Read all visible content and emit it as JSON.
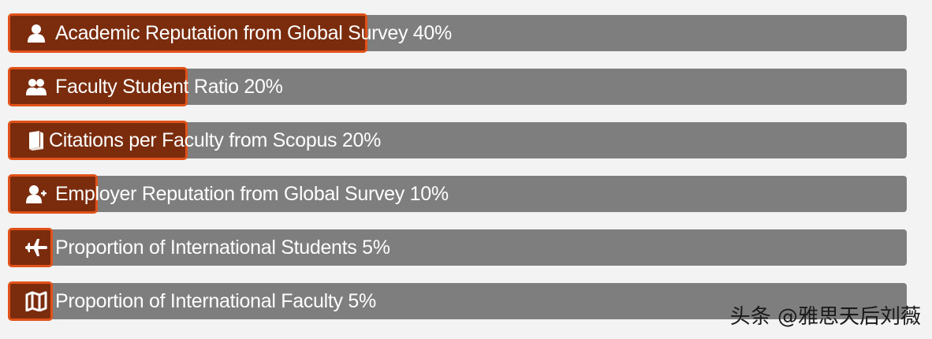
{
  "chart_data": {
    "type": "bar",
    "orientation": "horizontal",
    "categories": [
      "Academic Reputation from Global Survey 40%",
      "Faculty Student Ratio 20%",
      "Citations per Faculty from Scopus 20%",
      "Employer Reputation from Global Survey 10%",
      "Proportion of International Students 5%",
      "Proportion of International Faculty 5%"
    ],
    "values": [
      40,
      20,
      20,
      10,
      5,
      5
    ],
    "icons": [
      "user-icon",
      "users-icon",
      "book-icon",
      "user-plus-icon",
      "plane-icon",
      "map-icon"
    ],
    "xlim": [
      0,
      100
    ],
    "fill_color": "#7a2c0d",
    "border_color": "#e0521a",
    "track_color": "#7f7e7f"
  },
  "watermark": "头条 @雅思天后刘薇"
}
